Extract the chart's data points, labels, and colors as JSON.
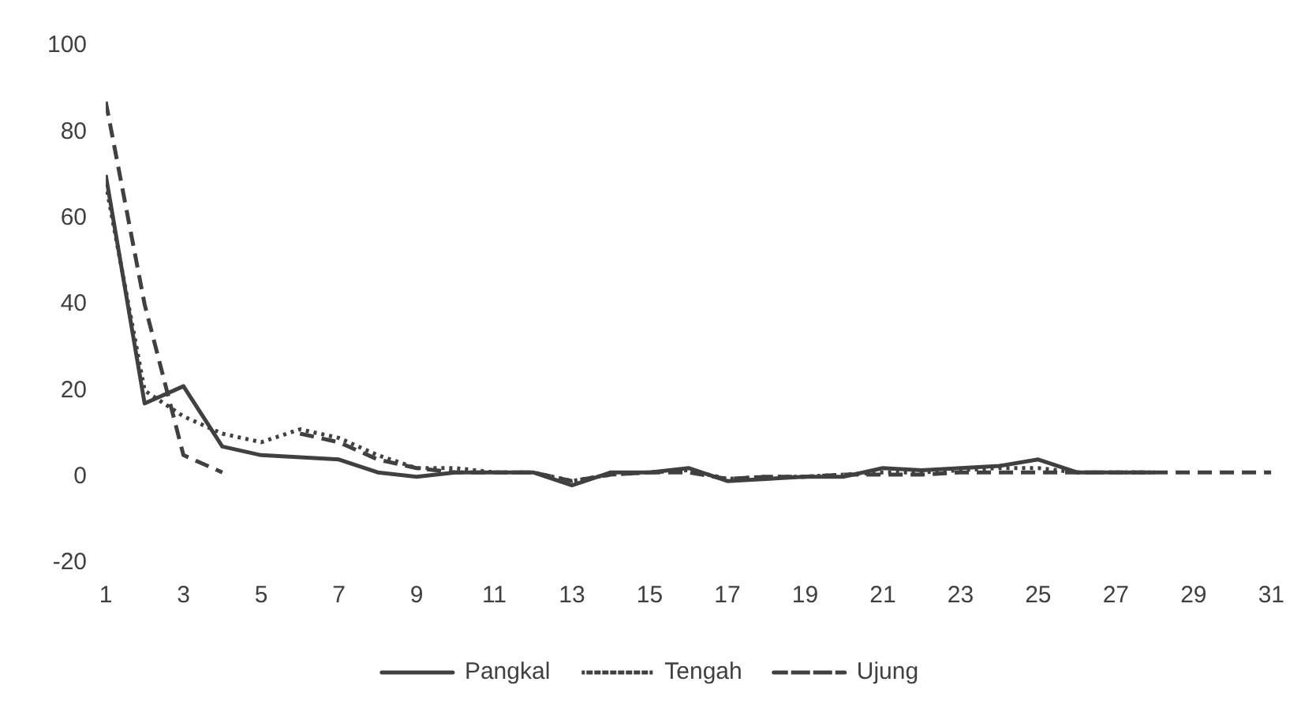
{
  "chart_data": {
    "type": "line",
    "x": [
      1,
      2,
      3,
      4,
      5,
      6,
      7,
      8,
      9,
      10,
      11,
      12,
      13,
      14,
      15,
      16,
      17,
      18,
      19,
      20,
      21,
      22,
      23,
      24,
      25,
      26,
      27,
      28,
      29,
      30,
      31
    ],
    "xlim": [
      1,
      31
    ],
    "xticks": [
      1,
      3,
      5,
      7,
      9,
      11,
      13,
      15,
      17,
      19,
      21,
      23,
      25,
      27,
      29,
      31
    ],
    "series": [
      {
        "name": "Pangkal",
        "color": "#404040",
        "line_style": "solid",
        "values": [
          70,
          17,
          21,
          7,
          5,
          4.5,
          4,
          1,
          0,
          1,
          1,
          1,
          -2,
          1,
          1,
          2,
          -1,
          -0.5,
          0,
          0,
          2,
          1.5,
          2,
          2.5,
          4,
          1,
          1,
          1,
          null,
          null,
          null
        ]
      },
      {
        "name": "Tengah",
        "color": "#404040",
        "line_style": "dotted",
        "values": [
          68,
          20,
          14,
          10,
          8,
          11,
          9,
          5,
          2,
          2,
          1,
          1,
          -1,
          0.5,
          1,
          1.5,
          -0.5,
          0,
          0,
          0.5,
          1,
          1,
          1.5,
          2,
          2,
          1,
          1,
          1,
          null,
          null,
          null
        ]
      },
      {
        "name": "Ujung",
        "color": "#404040",
        "line_style": "dashed",
        "values": [
          87,
          40,
          5,
          1,
          null,
          10,
          8,
          4,
          2,
          1,
          1,
          1,
          -1,
          0.5,
          1,
          1,
          -0.5,
          0,
          0,
          0.5,
          0.5,
          0.5,
          1,
          1,
          1,
          1,
          1,
          1,
          1,
          1,
          1
        ]
      }
    ],
    "ylim": [
      -20,
      100
    ],
    "yticks": [
      -20,
      0,
      20,
      40,
      60,
      80,
      100
    ],
    "grid": false,
    "legend": "bottom",
    "marker": "none"
  }
}
